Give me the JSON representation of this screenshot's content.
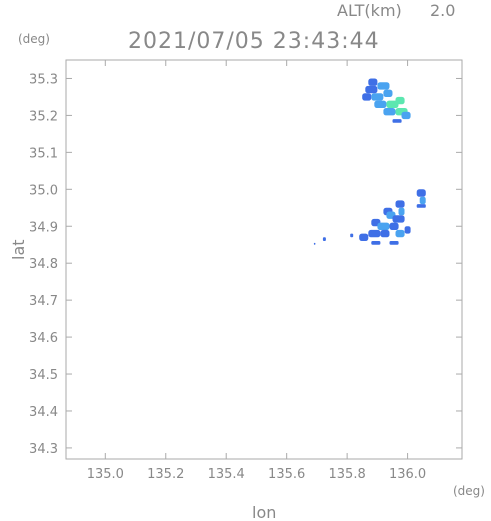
{
  "chart_data": {
    "type": "heatmap",
    "title": "2021/07/05 23:43:44",
    "altitude_label": "ALT(km)",
    "altitude_value": "2.0",
    "xlabel": "lon",
    "ylabel": "lat",
    "x_unit": "(deg)",
    "y_unit": "(deg)",
    "xlim": [
      134.87,
      136.18
    ],
    "ylim": [
      34.27,
      35.35
    ],
    "grid": false,
    "x_ticks": [
      {
        "value": 135.0,
        "label": "135.0"
      },
      {
        "value": 135.2,
        "label": "135.2"
      },
      {
        "value": 135.4,
        "label": "135.4"
      },
      {
        "value": 135.6,
        "label": "135.6"
      },
      {
        "value": 135.8,
        "label": "135.8"
      },
      {
        "value": 136.0,
        "label": "136.0"
      }
    ],
    "y_ticks": [
      {
        "value": 34.3,
        "label": "34.3"
      },
      {
        "value": 34.4,
        "label": "34.4"
      },
      {
        "value": 34.5,
        "label": "34.5"
      },
      {
        "value": 34.6,
        "label": "34.6"
      },
      {
        "value": 34.7,
        "label": "34.7"
      },
      {
        "value": 34.8,
        "label": "34.8"
      },
      {
        "value": 34.9,
        "label": "34.9"
      },
      {
        "value": 35.0,
        "label": "35.0"
      },
      {
        "value": 35.1,
        "label": "35.1"
      },
      {
        "value": 35.2,
        "label": "35.2"
      },
      {
        "value": 35.3,
        "label": "35.3"
      }
    ],
    "colors": {
      "frame": "#aaaaaa",
      "text": "#888888",
      "weak": "#3f6fe6",
      "medium": "#4aa3f0",
      "strong": "#5ce7b0"
    },
    "cells": [
      {
        "lon": 135.87,
        "lat": 35.28,
        "w": 0.03,
        "h": 0.02,
        "level": "weak"
      },
      {
        "lon": 135.86,
        "lat": 35.26,
        "w": 0.04,
        "h": 0.02,
        "level": "weak"
      },
      {
        "lon": 135.9,
        "lat": 35.27,
        "w": 0.04,
        "h": 0.02,
        "level": "medium"
      },
      {
        "lon": 135.85,
        "lat": 35.24,
        "w": 0.03,
        "h": 0.02,
        "level": "weak"
      },
      {
        "lon": 135.88,
        "lat": 35.24,
        "w": 0.04,
        "h": 0.02,
        "level": "medium"
      },
      {
        "lon": 135.92,
        "lat": 35.25,
        "w": 0.03,
        "h": 0.02,
        "level": "medium"
      },
      {
        "lon": 135.89,
        "lat": 35.22,
        "w": 0.04,
        "h": 0.02,
        "level": "medium"
      },
      {
        "lon": 135.93,
        "lat": 35.22,
        "w": 0.04,
        "h": 0.02,
        "level": "strong"
      },
      {
        "lon": 135.96,
        "lat": 35.23,
        "w": 0.03,
        "h": 0.02,
        "level": "strong"
      },
      {
        "lon": 135.92,
        "lat": 35.2,
        "w": 0.04,
        "h": 0.02,
        "level": "medium"
      },
      {
        "lon": 135.96,
        "lat": 35.2,
        "w": 0.04,
        "h": 0.02,
        "level": "strong"
      },
      {
        "lon": 135.98,
        "lat": 35.19,
        "w": 0.03,
        "h": 0.02,
        "level": "medium"
      },
      {
        "lon": 135.95,
        "lat": 35.18,
        "w": 0.03,
        "h": 0.01,
        "level": "weak"
      },
      {
        "lon": 136.03,
        "lat": 34.98,
        "w": 0.03,
        "h": 0.02,
        "level": "weak"
      },
      {
        "lon": 136.04,
        "lat": 34.96,
        "w": 0.02,
        "h": 0.02,
        "level": "medium"
      },
      {
        "lon": 136.03,
        "lat": 34.95,
        "w": 0.03,
        "h": 0.01,
        "level": "weak"
      },
      {
        "lon": 135.96,
        "lat": 34.95,
        "w": 0.03,
        "h": 0.02,
        "level": "weak"
      },
      {
        "lon": 135.97,
        "lat": 34.93,
        "w": 0.02,
        "h": 0.02,
        "level": "medium"
      },
      {
        "lon": 135.92,
        "lat": 34.93,
        "w": 0.03,
        "h": 0.02,
        "level": "weak"
      },
      {
        "lon": 135.93,
        "lat": 34.92,
        "w": 0.03,
        "h": 0.02,
        "level": "medium"
      },
      {
        "lon": 135.95,
        "lat": 34.91,
        "w": 0.04,
        "h": 0.02,
        "level": "weak"
      },
      {
        "lon": 135.88,
        "lat": 34.9,
        "w": 0.03,
        "h": 0.02,
        "level": "weak"
      },
      {
        "lon": 135.9,
        "lat": 34.89,
        "w": 0.04,
        "h": 0.02,
        "level": "medium"
      },
      {
        "lon": 135.94,
        "lat": 34.89,
        "w": 0.03,
        "h": 0.02,
        "level": "weak"
      },
      {
        "lon": 135.87,
        "lat": 34.87,
        "w": 0.04,
        "h": 0.02,
        "level": "weak"
      },
      {
        "lon": 135.91,
        "lat": 34.87,
        "w": 0.03,
        "h": 0.02,
        "level": "weak"
      },
      {
        "lon": 135.96,
        "lat": 34.87,
        "w": 0.03,
        "h": 0.02,
        "level": "medium"
      },
      {
        "lon": 135.99,
        "lat": 34.88,
        "w": 0.02,
        "h": 0.02,
        "level": "weak"
      },
      {
        "lon": 135.84,
        "lat": 34.86,
        "w": 0.03,
        "h": 0.02,
        "level": "weak"
      },
      {
        "lon": 135.88,
        "lat": 34.85,
        "w": 0.03,
        "h": 0.01,
        "level": "weak"
      },
      {
        "lon": 135.94,
        "lat": 34.85,
        "w": 0.03,
        "h": 0.01,
        "level": "weak"
      },
      {
        "lon": 135.81,
        "lat": 34.87,
        "w": 0.01,
        "h": 0.01,
        "level": "weak"
      },
      {
        "lon": 135.72,
        "lat": 34.86,
        "w": 0.01,
        "h": 0.01,
        "level": "weak"
      },
      {
        "lon": 135.69,
        "lat": 34.85,
        "w": 0.005,
        "h": 0.005,
        "level": "weak"
      }
    ]
  }
}
